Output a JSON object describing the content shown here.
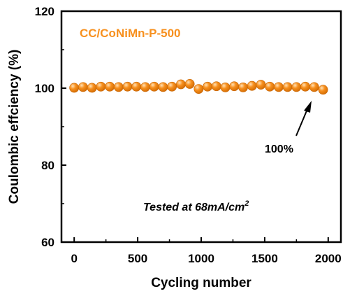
{
  "chart_data": {
    "type": "scatter",
    "xlabel": "Cycling number",
    "ylabel": "Coulombic effciency (%)",
    "xlim": [
      -100,
      2100
    ],
    "ylim": [
      60,
      120
    ],
    "x_ticks": [
      0,
      500,
      1000,
      1500,
      2000
    ],
    "y_ticks": [
      60,
      80,
      100,
      120
    ],
    "grid": false,
    "legend": "top-left",
    "series": [
      {
        "name": "CC/CoNiMn-P-500",
        "color": "#F7901E",
        "marker": "sphere",
        "x": [
          0,
          70,
          140,
          210,
          280,
          350,
          420,
          490,
          560,
          630,
          700,
          770,
          840,
          910,
          980,
          1050,
          1120,
          1190,
          1260,
          1330,
          1400,
          1470,
          1540,
          1610,
          1680,
          1750,
          1820,
          1890,
          1960
        ],
        "y": [
          100.1,
          100.3,
          100.1,
          100.4,
          100.4,
          100.3,
          100.4,
          100.4,
          100.3,
          100.4,
          100.3,
          100.4,
          101.0,
          101.1,
          99.8,
          100.4,
          100.5,
          100.2,
          100.5,
          100.2,
          100.6,
          100.9,
          100.4,
          100.3,
          100.3,
          100.3,
          100.4,
          100.3,
          99.6
        ]
      }
    ],
    "annotations": {
      "arrow_label": "100%",
      "condition_prefix": "Tested at 68mA/cm",
      "condition_superscript": "2"
    }
  }
}
